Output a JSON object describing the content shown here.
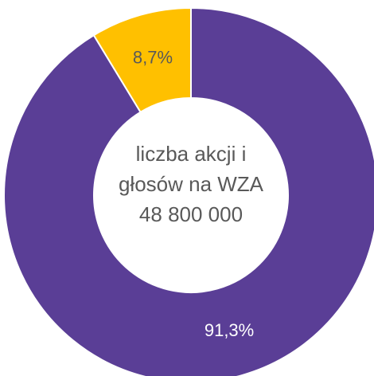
{
  "chart_data": {
    "type": "donut",
    "values": [
      91.3,
      8.7
    ],
    "value_labels": [
      "91,3%",
      "8,7%"
    ],
    "colors": [
      "#5a3e96",
      "#ffc000"
    ],
    "label_colors": [
      "#ffffff",
      "#595959"
    ],
    "center_text": [
      "liczba akcji i",
      "głosów na WZA",
      "48 800 000"
    ]
  }
}
